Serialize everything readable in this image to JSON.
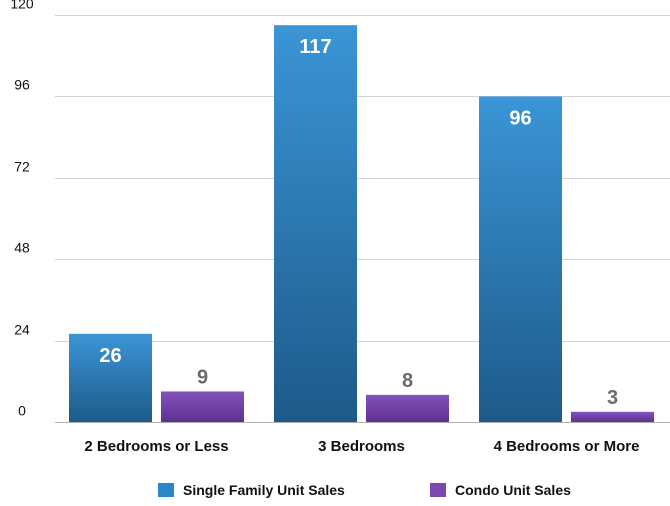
{
  "chart_data": {
    "type": "bar",
    "title": "",
    "xlabel": "",
    "ylabel": "",
    "categories": [
      "2 Bedrooms or Less",
      "3 Bedrooms",
      "4 Bedrooms or More"
    ],
    "series": [
      {
        "name": "Single Family Unit Sales",
        "values": [
          26,
          117,
          96
        ],
        "color": "#2a86c9",
        "color_dark": "#1f5c8c"
      },
      {
        "name": "Condo Unit Sales",
        "values": [
          9,
          8,
          3
        ],
        "color": "#7a48b0",
        "color_dark": "#5a2f8a"
      }
    ],
    "ylim": [
      0,
      120
    ],
    "yticks": [
      "0",
      "24",
      "48",
      "72",
      "96",
      "120"
    ],
    "grid": true,
    "legend_position": "bottom-center",
    "value_labels": true
  }
}
